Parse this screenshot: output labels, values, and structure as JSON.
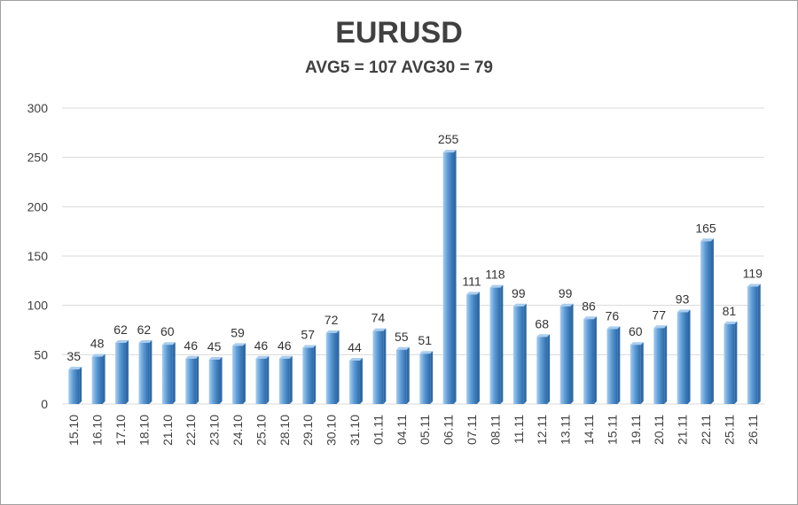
{
  "chart_data": {
    "type": "bar",
    "title": "EURUSD",
    "subtitle": "AVG5 = 107 AVG30 = 79",
    "categories": [
      "15.10",
      "16.10",
      "17.10",
      "18.10",
      "21.10",
      "22.10",
      "23.10",
      "24.10",
      "25.10",
      "28.10",
      "29.10",
      "30.10",
      "31.10",
      "01.11",
      "04.11",
      "05.11",
      "06.11",
      "07.11",
      "08.11",
      "11.11",
      "12.11",
      "13.11",
      "14.11",
      "15.11",
      "19.11",
      "20.11",
      "21.11",
      "22.11",
      "25.11",
      "26.11"
    ],
    "values": [
      35,
      48,
      62,
      62,
      60,
      46,
      45,
      59,
      46,
      46,
      57,
      72,
      44,
      74,
      55,
      51,
      255,
      111,
      118,
      99,
      68,
      99,
      86,
      76,
      60,
      77,
      93,
      165,
      81,
      119
    ],
    "data_labels": [
      "35",
      "48",
      "62",
      "62",
      "60",
      "46",
      "45",
      "59",
      "46",
      "46",
      "57",
      "72",
      "44",
      "74",
      "55",
      "51",
      "255",
      "111",
      "118",
      "99",
      "68",
      "99",
      "86",
      "76",
      "60",
      "77",
      "93",
      "165",
      "81",
      "119"
    ],
    "ylim": [
      0,
      300
    ],
    "yticks": [
      0,
      50,
      100,
      150,
      200,
      250,
      300
    ],
    "grid": true,
    "legend": "none",
    "colors": {
      "bar": "#5b9bd5",
      "bar_light": "#a9cdef",
      "bar_dark": "#2e6aa8",
      "grid": "#d9d9d9"
    }
  }
}
